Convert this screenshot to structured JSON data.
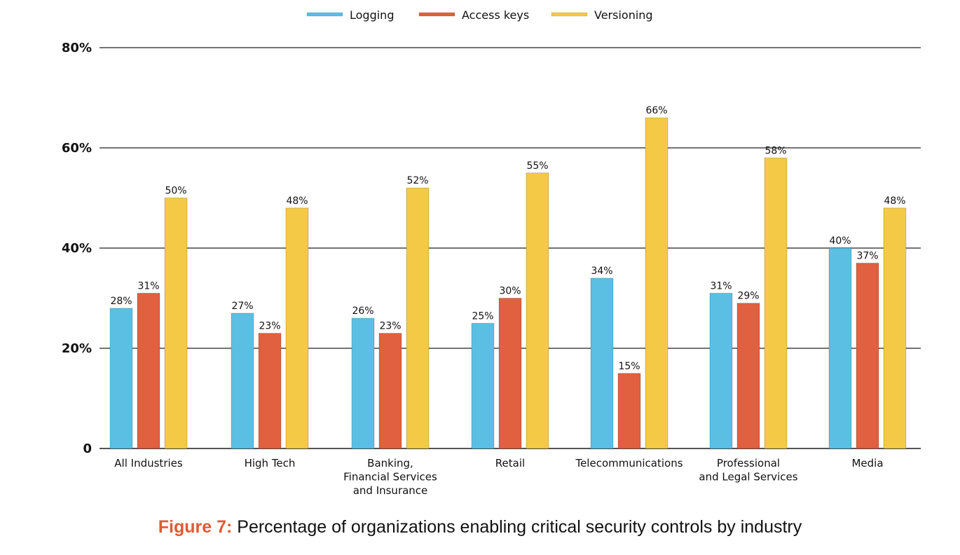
{
  "chart_data": {
    "type": "bar",
    "title": "",
    "xlabel": "",
    "ylabel": "",
    "ylim": [
      0,
      80
    ],
    "yticks": [
      0,
      20,
      40,
      60,
      80
    ],
    "ytick_labels": [
      "0",
      "20%",
      "40%",
      "60%",
      "80%"
    ],
    "grid": true,
    "legend_position": "top-center",
    "categories": [
      [
        "All Industries"
      ],
      [
        "High Tech"
      ],
      [
        "Banking,",
        "Financial Services",
        "and Insurance"
      ],
      [
        "Retail"
      ],
      [
        "Telecommunications"
      ],
      [
        "Professional",
        "and Legal Services"
      ],
      [
        "Media"
      ]
    ],
    "series": [
      {
        "name": "Logging",
        "color": "#5bbfe4",
        "values": [
          28,
          27,
          26,
          25,
          34,
          31,
          40
        ],
        "labels": [
          "28%",
          "27%",
          "26%",
          "25%",
          "34%",
          "31%",
          "40%"
        ]
      },
      {
        "name": "Access keys",
        "color": "#e06040",
        "values": [
          31,
          23,
          23,
          30,
          15,
          29,
          37
        ],
        "labels": [
          "31%",
          "23%",
          "23%",
          "30%",
          "15%",
          "29%",
          "37%"
        ]
      },
      {
        "name": "Versioning",
        "color": "#f4c945",
        "values": [
          50,
          48,
          52,
          55,
          66,
          58,
          48
        ],
        "labels": [
          "50%",
          "48%",
          "52%",
          "55%",
          "66%",
          "58%",
          "48%"
        ]
      }
    ]
  },
  "caption": {
    "figure_label": "Figure 7:",
    "text": " Percentage of organizations enabling critical security controls by industry",
    "figure_color": "#e05a33"
  }
}
